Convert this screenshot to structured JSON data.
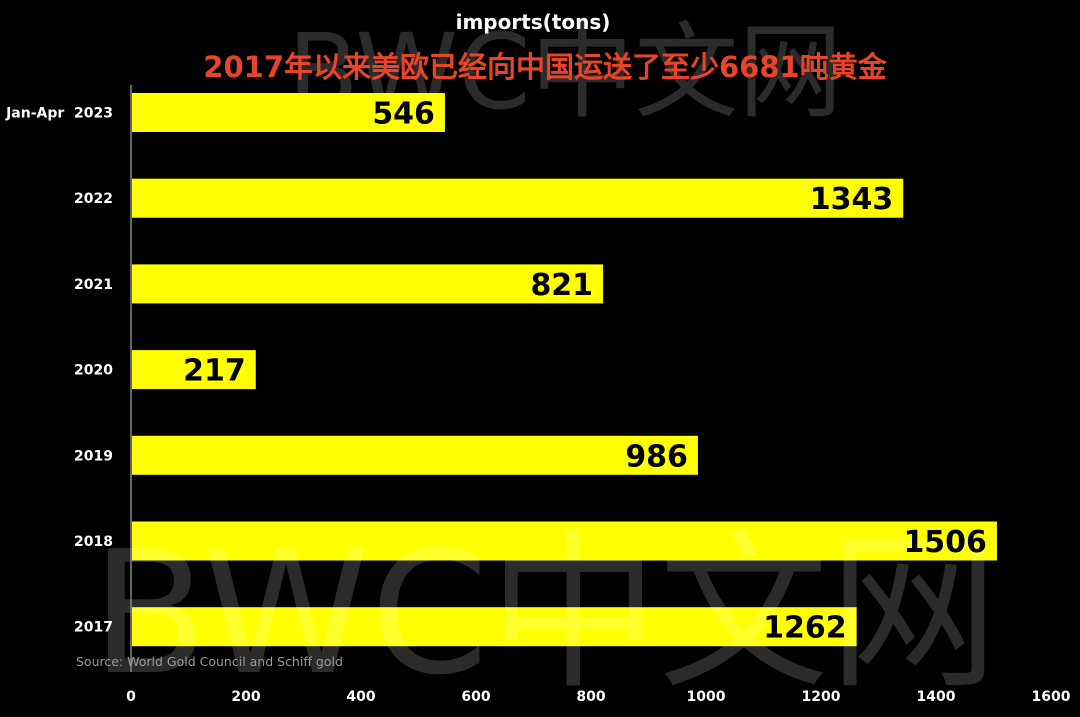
{
  "chart_data": {
    "type": "bar",
    "orientation": "horizontal",
    "title": "imports(tons)",
    "subtitle": "2017年以来美欧已经向中国运送了至少6681吨黄金",
    "categories": [
      "Jan-Apr  2023",
      "2022",
      "2021",
      "2020",
      "2019",
      "2018",
      "2017"
    ],
    "values": [
      546,
      1343,
      821,
      217,
      986,
      1506,
      1262
    ],
    "xlabel": "",
    "ylabel": "",
    "xlim": [
      0,
      1600
    ],
    "xticks": [
      0,
      200,
      400,
      600,
      800,
      1000,
      1200,
      1400,
      1600
    ],
    "grid": false,
    "legend": "none",
    "source": "Source: World Gold Council and Schiff gold"
  },
  "watermark": {
    "top_text": "BWC中文网",
    "bottom_text": "BWC中文网"
  },
  "colors": {
    "background": "#000000",
    "bar": "#FFFF00",
    "title": "#FFFFFF",
    "subtitle": "#E8442A",
    "value_label": "#000000",
    "tick": "#FFFFFF",
    "axis": "#888888",
    "source": "#9a9a9a",
    "watermark": "#ffffff"
  }
}
